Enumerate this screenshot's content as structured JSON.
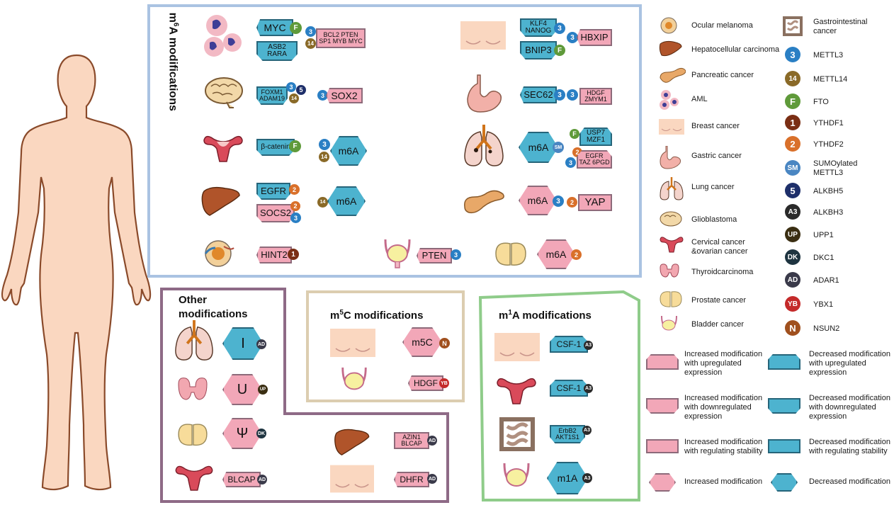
{
  "panels": {
    "m6a": {
      "title": "m6A modifications"
    },
    "other": {
      "title_line1": "Other",
      "title_line2": "modifications"
    },
    "m5c": {
      "title": "m5C modifications"
    },
    "m1a": {
      "title": "m1A modifications"
    }
  },
  "m6a_tags": {
    "myc": "MYC",
    "asb2": "ASB2\nRARA",
    "bcl2": "BCL2 PTEN\nSP1 MYB MYC",
    "foxm1": "FOXM1\nADAM19",
    "sox2": "SOX2",
    "catenin": "β-catenin",
    "m6a_cervix": "m6A",
    "egfr": "EGFR",
    "socs2": "SOCS2",
    "m6a_liver": "m6A",
    "hint2": "HINT2",
    "pten_bladder": "PTEN",
    "m6a_prostate": "m6A",
    "klf4": "KLF4\nNANOG",
    "hbxip": "HBXIP",
    "bnip3": "BNIP3",
    "sec62": "SEC62",
    "hdgf": "HDGF\nZMYM1",
    "m6a_lung": "m6A",
    "usp7": "USP7\nMZF1",
    "egfr_taz": "EGFR\nTAZ 6PGD",
    "m6a_pancreas": "m6A",
    "yap": "YAP"
  },
  "other_tags": {
    "i": "I",
    "u": "U",
    "psi": "Ψ",
    "blcap": "BLCAP",
    "azin1": "AZIN1\nBLCAP",
    "dhfr": "DHFR"
  },
  "m5c_tags": {
    "m5c": "m5C",
    "hdgf": "HDGF"
  },
  "m1a_tags": {
    "csf1a": "CSF-1",
    "csf1b": "CSF-1",
    "erbb2": "ErbB2\nAKT1S1",
    "m1a": "m1A"
  },
  "badges": {
    "METTL3": "3",
    "METTL14": "14",
    "FTO": "F",
    "YTHDF1": "1",
    "YTHDF2": "2",
    "SUMO": "SM",
    "ALKBH5": "5",
    "ALKBH3": "A3",
    "UPP1": "UP",
    "DKC1": "DK",
    "ADAR1": "AD",
    "YBX1": "YB",
    "NSUN2": "N"
  },
  "legend_cancers": [
    "Ocular melanoma",
    "Hepatocellular carcinoma",
    "Pancreatic cancer",
    "AML",
    "Breast cancer",
    "Gastric cancer",
    "Lung cancer",
    "Glioblastoma",
    "Cervical cancer\n&ovarian cancer",
    "Thyroidcarcinoma",
    "Prostate cancer",
    "Bladder cancer"
  ],
  "legend_enzymes": [
    {
      "badge": "",
      "label": "Gastrointestinal\ncancer",
      "color": ""
    },
    {
      "badge": "3",
      "label": "METTL3",
      "color": "#2a7fc4"
    },
    {
      "badge": "14",
      "label": "METTL14",
      "color": "#8a6a28"
    },
    {
      "badge": "F",
      "label": "FTO",
      "color": "#5f9a3a"
    },
    {
      "badge": "1",
      "label": "YTHDF1",
      "color": "#7a2e14"
    },
    {
      "badge": "2",
      "label": "YTHDF2",
      "color": "#d9702a"
    },
    {
      "badge": "SM",
      "label": "SUMOylated\nMETTL3",
      "color": "#4a86c2"
    },
    {
      "badge": "5",
      "label": "ALKBH5",
      "color": "#1e2f6a"
    },
    {
      "badge": "A3",
      "label": "ALKBH3",
      "color": "#2a2a2a"
    },
    {
      "badge": "UP",
      "label": "UPP1",
      "color": "#3a2e12"
    },
    {
      "badge": "DK",
      "label": "DKC1",
      "color": "#1e3440"
    },
    {
      "badge": "AD",
      "label": "ADAR1",
      "color": "#3a3a4a"
    },
    {
      "badge": "YB",
      "label": "YBX1",
      "color": "#c42a2a"
    },
    {
      "badge": "N",
      "label": "NSUN2",
      "color": "#a0501e"
    }
  ],
  "legend_shapes": [
    "Increased modification\nwith upregulated\nexpression",
    "Decreased modification\nwith upregulated\nexpression",
    "Increased modification\nwith downregulated\nexpression",
    "Decreased modification\nwith downregulated\nexpression",
    "Increased modification\nwith regulating stability",
    "Decreased modification\nwith regulating stability",
    "Increased modification",
    "Decreased modification"
  ],
  "colors": {
    "pink": "#f2a7b8",
    "blue": "#4db3cf",
    "m6a_border": "#aac3e2",
    "other_border": "#8e6a86",
    "m5c_border": "#dccdb0",
    "m1a_border": "#8fcc8a",
    "skin": "#fad7c0",
    "body_outline": "#8a4a2a"
  }
}
